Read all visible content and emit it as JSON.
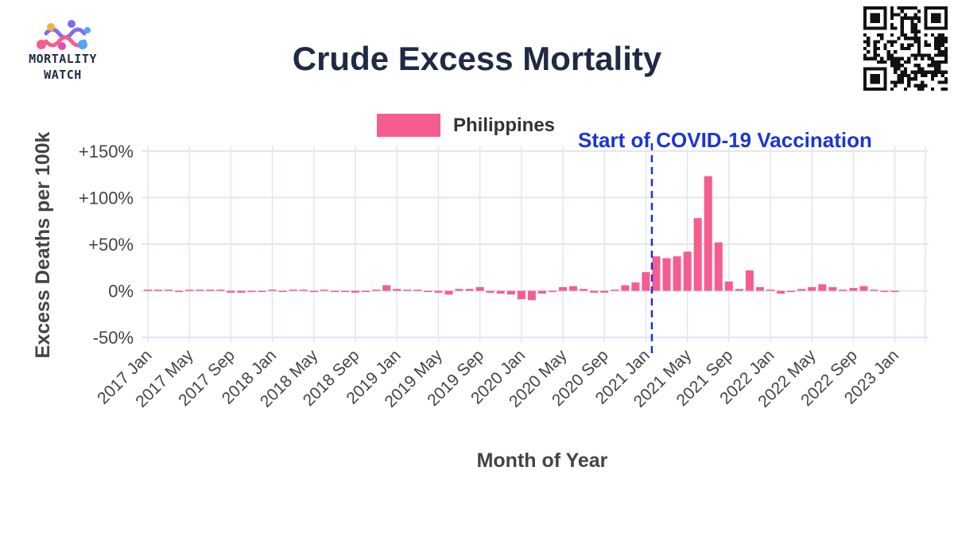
{
  "header": {
    "logo_line1": "MORTALITY",
    "logo_line2": "WATCH",
    "title": "Crude Excess Mortality"
  },
  "colors": {
    "bar": "#f65c8f",
    "grid": "#dfe6f3",
    "axis_text": "#444444",
    "annotation": "#1a35d6",
    "title": "#1f2a44"
  },
  "chart_data": {
    "type": "bar",
    "title": "Crude Excess Mortality",
    "xlabel": "Month of Year",
    "ylabel": "Excess Deaths per 100k",
    "ylim": [
      -55,
      155
    ],
    "yticks": [
      {
        "value": 150,
        "label": "+150%"
      },
      {
        "value": 100,
        "label": "+100%"
      },
      {
        "value": 50,
        "label": "+50%"
      },
      {
        "value": 0,
        "label": "0%"
      },
      {
        "value": -50,
        "label": "-50%"
      }
    ],
    "legend": {
      "position": "top-center",
      "entries": [
        "Philippines"
      ]
    },
    "series": [
      {
        "name": "Philippines",
        "start": "2017-01",
        "values": [
          0,
          0,
          0,
          -1,
          0,
          1,
          1,
          1,
          -2,
          -2,
          -1,
          -1,
          0,
          -1,
          0,
          0,
          -1,
          0,
          -1,
          -1,
          -2,
          -1,
          1,
          6,
          2,
          0,
          0,
          -1,
          -2,
          -4,
          2,
          2,
          4,
          -2,
          -3,
          -4,
          -9,
          -10,
          -3,
          -1,
          4,
          5,
          2,
          -2,
          -2,
          1,
          6,
          9,
          20,
          37,
          35,
          37,
          42,
          78,
          123,
          52,
          10,
          2,
          22,
          4,
          0,
          -3,
          -1,
          2,
          4,
          7,
          4,
          0,
          3,
          5,
          1,
          -1,
          -1
        ]
      }
    ],
    "x_tick_labels": [
      "2017 Jan",
      "2017 May",
      "2017 Sep",
      "2018 Jan",
      "2018 May",
      "2018 Sep",
      "2019 Jan",
      "2019 May",
      "2019 Sep",
      "2020 Jan",
      "2020 May",
      "2020 Sep",
      "2021 Jan",
      "2021 May",
      "2021 Sep",
      "2022 Jan",
      "2022 May",
      "2022 Sep",
      "2023 Jan"
    ],
    "x_tick_every_months": 4,
    "annotations": [
      {
        "type": "vline",
        "at_month": "2021-02",
        "label": "Start of COVID-19 Vaccination"
      }
    ]
  }
}
